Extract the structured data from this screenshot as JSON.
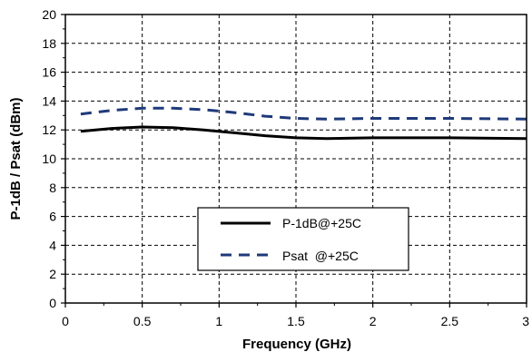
{
  "chart_data": {
    "type": "line",
    "xlabel": "Frequency (GHz)",
    "ylabel": "P-1dB / Psat (dBm)",
    "xlim": [
      0,
      3
    ],
    "ylim": [
      0,
      20
    ],
    "x_ticks": [
      0,
      0.5,
      1,
      1.5,
      2,
      2.5,
      3
    ],
    "x_tick_labels": [
      "0",
      "0.5",
      "1",
      "1.5",
      "2",
      "2.5",
      "3"
    ],
    "y_ticks": [
      0,
      2,
      4,
      6,
      8,
      10,
      12,
      14,
      16,
      18,
      20
    ],
    "y_tick_labels": [
      "0",
      "2",
      "4",
      "6",
      "8",
      "10",
      "12",
      "14",
      "16",
      "18",
      "20"
    ],
    "grid": true,
    "legend_placement": "lower-center",
    "series": [
      {
        "name": "P-1dB@+25C",
        "style": "solid",
        "color": "#000000",
        "x": [
          0.1,
          0.3,
          0.5,
          0.7,
          0.9,
          1.1,
          1.3,
          1.5,
          1.7,
          2.0,
          2.5,
          3.0
        ],
        "y": [
          11.9,
          12.1,
          12.2,
          12.15,
          12.0,
          11.8,
          11.6,
          11.45,
          11.4,
          11.45,
          11.45,
          11.4
        ]
      },
      {
        "name": "Psat  @+25C",
        "style": "dashed",
        "color": "#1f3a7a",
        "x": [
          0.1,
          0.3,
          0.5,
          0.7,
          0.9,
          1.1,
          1.3,
          1.5,
          1.7,
          2.0,
          2.5,
          3.0
        ],
        "y": [
          13.1,
          13.35,
          13.5,
          13.5,
          13.4,
          13.2,
          12.95,
          12.8,
          12.75,
          12.8,
          12.8,
          12.75
        ]
      }
    ]
  }
}
